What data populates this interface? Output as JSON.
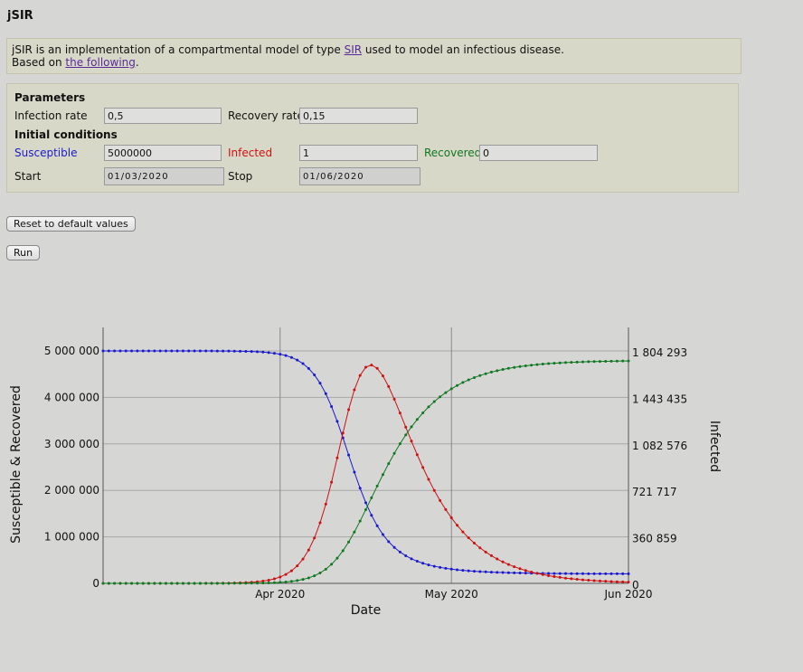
{
  "page": {
    "title": "jSIR"
  },
  "intro": {
    "text1": "jSIR is an implementation of a compartmental model of type ",
    "link1": "SIR",
    "text2": " used to model an infectious disease.",
    "text3": "Based on ",
    "link2": "the following",
    "text4": "."
  },
  "parameters": {
    "heading": "Parameters",
    "infection_rate_label": "Infection rate",
    "infection_rate_value": "0,5",
    "recovery_rate_label": "Recovery rate",
    "recovery_rate_value": "0,15",
    "initial_heading": "Initial conditions",
    "susceptible_label": "Susceptible",
    "susceptible_value": "5000000",
    "infected_label": "Infected",
    "infected_value": "1",
    "recovered_label": "Recovered",
    "recovered_value": "0",
    "start_label": "Start",
    "start_value": "01/03/2020",
    "stop_label": "Stop",
    "stop_value": "01/06/2020"
  },
  "buttons": {
    "reset": "Reset to default values",
    "run": "Run"
  },
  "colors": {
    "susceptible": "#1a1acc",
    "infected": "#cc1111",
    "recovered": "#117722"
  },
  "chart_data": {
    "type": "line",
    "xlabel": "Date",
    "ylabel_left": "Susceptible & Recovered",
    "ylabel_right": "Infected",
    "x_ticks": [
      "Apr 2020",
      "May 2020",
      "Jun 2020"
    ],
    "left_ticks": [
      "0",
      "1 000 000",
      "2 000 000",
      "3 000 000",
      "4 000 000",
      "5 000 000"
    ],
    "right_ticks": [
      "0",
      "360 859",
      "721 717",
      "1 082 576",
      "1 443 435",
      "1 804 293"
    ],
    "x_range": [
      "2020-03-01",
      "2020-06-01"
    ],
    "left_ylim": [
      0,
      5000000
    ],
    "right_ylim": [
      0,
      1804293
    ],
    "model": {
      "beta": 0.5,
      "gamma": 0.15,
      "S0": 5000000,
      "I0": 1,
      "R0": 0,
      "days": 92
    },
    "series": [
      {
        "name": "Susceptible",
        "axis": "left",
        "color": "#1a1acc"
      },
      {
        "name": "Infected",
        "axis": "right",
        "color": "#cc1111"
      },
      {
        "name": "Recovered",
        "axis": "left",
        "color": "#117722"
      }
    ]
  }
}
